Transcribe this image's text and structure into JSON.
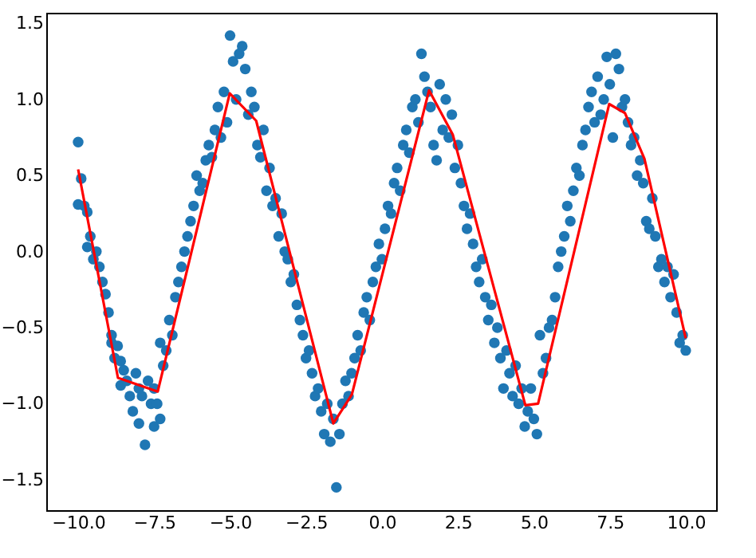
{
  "chart_data": {
    "type": "scatter",
    "grid": false,
    "xlim": [
      -11.05,
      11.0
    ],
    "ylim": [
      -1.7,
      1.57
    ],
    "xticks": [
      {
        "value": -10,
        "label": "−10.0"
      },
      {
        "value": -7.5,
        "label": "−7.5"
      },
      {
        "value": -5,
        "label": "−5.0"
      },
      {
        "value": -2.5,
        "label": "−2.5"
      },
      {
        "value": 0,
        "label": "0.0"
      },
      {
        "value": 2.5,
        "label": "2.5"
      },
      {
        "value": 5,
        "label": "5.0"
      },
      {
        "value": 7.5,
        "label": "7.5"
      },
      {
        "value": 10,
        "label": "10.0"
      }
    ],
    "yticks": [
      {
        "value": -1.5,
        "label": "−1.5"
      },
      {
        "value": -1,
        "label": "−1.0"
      },
      {
        "value": -0.5,
        "label": "−0.5"
      },
      {
        "value": 0,
        "label": "0.0"
      },
      {
        "value": 0.5,
        "label": "0.5"
      },
      {
        "value": 1,
        "label": "1.0"
      },
      {
        "value": 1.5,
        "label": "1.5"
      }
    ],
    "series": [
      {
        "marker": "circle",
        "color": "#1f77b4",
        "x": [
          -10,
          -10,
          -9.9,
          -9.8,
          -9.7,
          -9.6,
          -9.7,
          -9.5,
          -9.4,
          -9.3,
          -9.2,
          -9.1,
          -9.0,
          -8.9,
          -8.8,
          -8.9,
          -8.7,
          -8.6,
          -8.5,
          -8.6,
          -8.4,
          -8.3,
          -8.2,
          -8.1,
          -8.0,
          -7.9,
          -8.0,
          -7.8,
          -7.7,
          -7.5,
          -7.6,
          -7.4,
          -7.3,
          -7.5,
          -7.2,
          -7.3,
          -7.1,
          -7.0,
          -6.9,
          -6.8,
          -6.7,
          -6.6,
          -6.5,
          -6.4,
          -6.3,
          -6.2,
          -6.1,
          -6.0,
          -5.9,
          -5.8,
          -5.7,
          -5.6,
          -5.5,
          -5.4,
          -5.3,
          -5.2,
          -5.1,
          -5.0,
          -4.9,
          -4.8,
          -4.7,
          -4.6,
          -4.5,
          -4.4,
          -4.3,
          -4.2,
          -4.1,
          -4.0,
          -3.9,
          -3.8,
          -3.7,
          -3.6,
          -3.5,
          -3.4,
          -3.3,
          -3.2,
          -3.1,
          -3.0,
          -2.9,
          -2.8,
          -2.7,
          -2.6,
          -2.5,
          -2.4,
          -2.3,
          -2.2,
          -2.1,
          -2.0,
          -1.9,
          -1.8,
          -1.7,
          -1.6,
          -1.5,
          -1.4,
          -1.3,
          -1.2,
          -1.1,
          -1.0,
          -0.9,
          -0.8,
          -0.7,
          -0.6,
          -0.5,
          -0.4,
          -0.3,
          -0.2,
          -0.1,
          0.0,
          0.1,
          0.2,
          0.3,
          0.4,
          0.5,
          0.6,
          0.7,
          0.8,
          0.9,
          1.0,
          1.1,
          1.2,
          1.3,
          1.4,
          1.5,
          1.6,
          1.7,
          1.8,
          1.9,
          2.0,
          2.1,
          2.2,
          2.3,
          2.4,
          2.5,
          2.6,
          2.7,
          2.8,
          2.9,
          3.0,
          3.1,
          3.2,
          3.3,
          3.4,
          3.5,
          3.6,
          3.7,
          3.8,
          3.9,
          4.0,
          4.1,
          4.2,
          4.3,
          4.4,
          4.5,
          4.6,
          4.7,
          4.8,
          4.9,
          5.0,
          5.1,
          5.2,
          5.3,
          5.4,
          5.5,
          5.6,
          5.7,
          5.8,
          5.9,
          6.0,
          6.1,
          6.2,
          6.3,
          6.4,
          6.5,
          6.6,
          6.7,
          6.8,
          6.9,
          7.0,
          7.1,
          7.2,
          7.3,
          7.4,
          7.5,
          7.6,
          7.7,
          7.8,
          7.9,
          8.0,
          8.1,
          8.2,
          8.3,
          8.4,
          8.5,
          8.6,
          8.7,
          8.8,
          8.9,
          9.0,
          9.1,
          9.2,
          9.3,
          9.4,
          9.5,
          9.6,
          9.7,
          9.8,
          9.9,
          10.0
        ],
        "values": [
          0.72,
          0.31,
          0.48,
          0.3,
          0.26,
          0.1,
          0.03,
          -0.05,
          0.0,
          -0.1,
          -0.2,
          -0.28,
          -0.4,
          -0.55,
          -0.7,
          -0.6,
          -0.62,
          -0.72,
          -0.78,
          -0.88,
          -0.85,
          -0.95,
          -1.05,
          -0.8,
          -0.9,
          -0.95,
          -1.13,
          -1.27,
          -0.85,
          -0.9,
          -1.0,
          -1.0,
          -1.1,
          -1.15,
          -0.75,
          -0.6,
          -0.65,
          -0.45,
          -0.55,
          -0.3,
          -0.2,
          -0.1,
          0.0,
          0.1,
          0.2,
          0.3,
          0.5,
          0.4,
          0.45,
          0.6,
          0.7,
          0.62,
          0.8,
          0.95,
          0.75,
          1.05,
          0.85,
          1.42,
          1.25,
          1.0,
          1.3,
          1.35,
          1.2,
          0.9,
          1.05,
          0.95,
          0.7,
          0.62,
          0.8,
          0.4,
          0.55,
          0.3,
          0.35,
          0.1,
          0.25,
          0.0,
          -0.05,
          -0.2,
          -0.15,
          -0.35,
          -0.45,
          -0.55,
          -0.7,
          -0.65,
          -0.8,
          -0.95,
          -0.9,
          -1.05,
          -1.2,
          -1.0,
          -1.25,
          -1.1,
          -1.55,
          -1.2,
          -1.0,
          -0.85,
          -0.95,
          -0.8,
          -0.7,
          -0.55,
          -0.65,
          -0.4,
          -0.3,
          -0.45,
          -0.2,
          -0.1,
          0.05,
          -0.05,
          0.15,
          0.3,
          0.25,
          0.45,
          0.55,
          0.4,
          0.7,
          0.8,
          0.65,
          0.95,
          1.0,
          0.85,
          1.3,
          1.15,
          1.05,
          0.95,
          0.7,
          0.6,
          1.1,
          0.8,
          1.0,
          0.75,
          0.9,
          0.55,
          0.7,
          0.45,
          0.3,
          0.15,
          0.25,
          0.05,
          -0.1,
          -0.2,
          -0.05,
          -0.3,
          -0.45,
          -0.35,
          -0.6,
          -0.5,
          -0.7,
          -0.9,
          -0.65,
          -0.8,
          -0.95,
          -0.75,
          -1.0,
          -0.9,
          -1.15,
          -1.05,
          -0.9,
          -1.1,
          -1.2,
          -0.55,
          -0.8,
          -0.7,
          -0.5,
          -0.45,
          -0.3,
          -0.1,
          0.0,
          0.1,
          0.3,
          0.2,
          0.4,
          0.55,
          0.5,
          0.7,
          0.8,
          0.95,
          1.05,
          0.85,
          1.15,
          0.9,
          1.0,
          1.28,
          1.1,
          0.75,
          1.3,
          1.2,
          0.95,
          1.0,
          0.85,
          0.7,
          0.75,
          0.5,
          0.6,
          0.45,
          0.2,
          0.15,
          0.35,
          0.1,
          -0.1,
          -0.05,
          -0.2,
          -0.1,
          -0.3,
          -0.15,
          -0.4,
          -0.6,
          -0.55,
          -0.65
        ]
      },
      {
        "type": "line",
        "color": "#ff0000",
        "marker": "none",
        "line_style": "solid",
        "x": [
          -10.0,
          -8.69,
          -7.38,
          -5.01,
          -4.14,
          -1.6,
          -0.99,
          1.55,
          2.33,
          4.72,
          5.14,
          7.48,
          8.0,
          8.64,
          10.0
        ],
        "values": [
          0.54,
          -0.83,
          -0.92,
          1.04,
          0.86,
          -1.13,
          -0.94,
          1.06,
          0.77,
          -1.01,
          -1.0,
          0.97,
          0.91,
          0.61,
          -0.57
        ]
      }
    ]
  }
}
